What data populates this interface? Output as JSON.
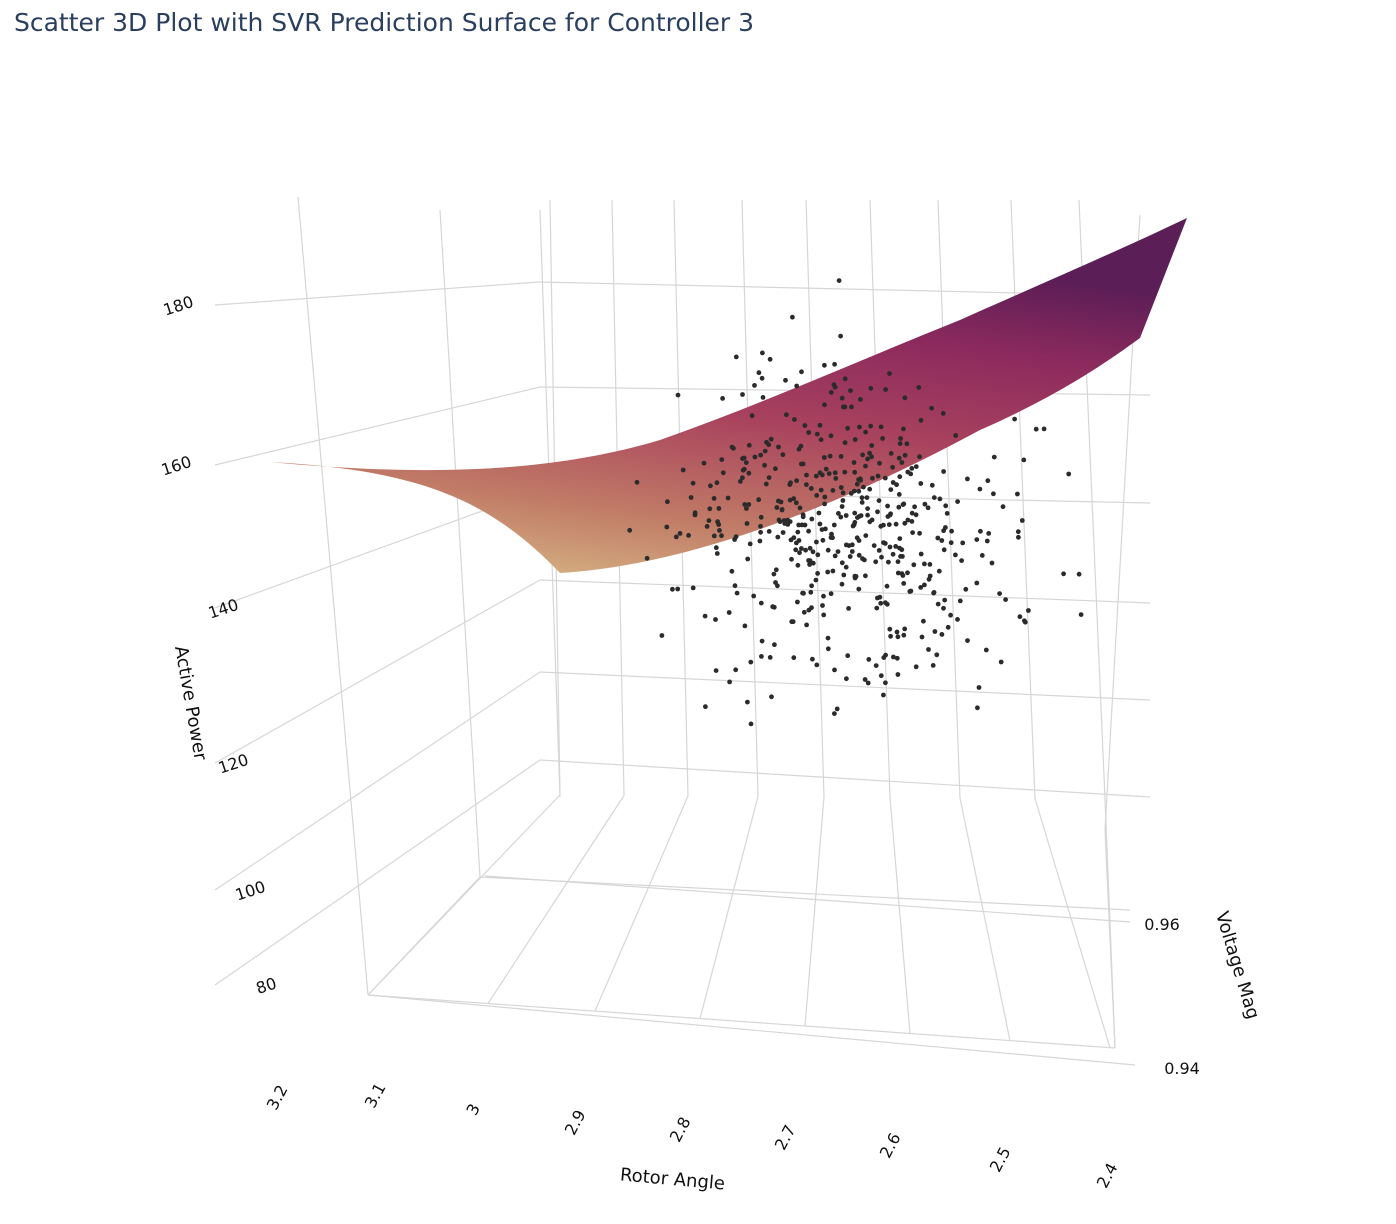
{
  "chart_data": {
    "type": "scatter3d",
    "title": "Scatter 3D Plot with SVR Prediction Surface for Controller 3",
    "axes": {
      "x": {
        "title": "Rotor Angle",
        "range": [
          2.4,
          3.2
        ],
        "ticks": [
          "3.2",
          "3.1",
          "3",
          "2.9",
          "2.8",
          "2.7",
          "2.6",
          "2.5",
          "2.4"
        ]
      },
      "y": {
        "title": "Voltage Mag",
        "range": [
          0.93,
          0.97
        ],
        "ticks": [
          "0.96",
          "0.94"
        ]
      },
      "z": {
        "title": "Active Power",
        "range": [
          75,
          190
        ],
        "ticks": [
          "180",
          "160",
          "140",
          "120",
          "100",
          "80"
        ]
      }
    },
    "grid": true,
    "surface": {
      "name": "SVR prediction",
      "colorscale": [
        "#d9c18a",
        "#c47a63",
        "#a8405d",
        "#8a2a5d",
        "#5a1f55"
      ],
      "approx_z": {
        "rotor_angle_3.2": 160,
        "rotor_angle_2.9": 150,
        "rotor_angle_2.6": 160,
        "rotor_angle_2.4": 178
      }
    },
    "scatter": {
      "color": "#2b2b2b",
      "approx_count": 500,
      "rotor_angle_range": [
        2.45,
        3.0
      ],
      "active_power_range": [
        105,
        188
      ]
    }
  }
}
